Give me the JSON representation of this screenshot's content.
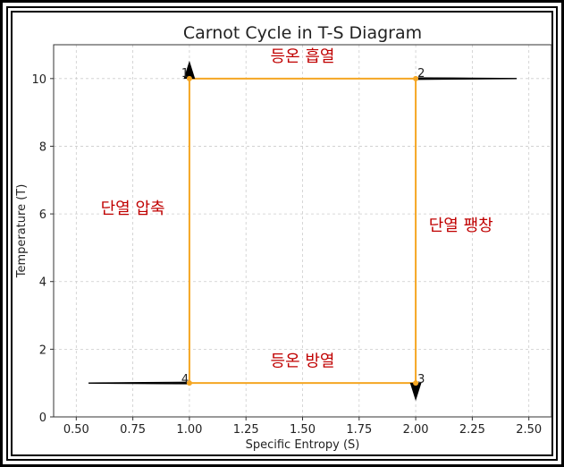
{
  "chart_data": {
    "type": "line",
    "title": "Carnot Cycle in T-S Diagram",
    "xlabel": "Specific Entropy (S)",
    "ylabel": "Temperature (T)",
    "xlim": [
      0.4,
      2.6
    ],
    "ylim": [
      0,
      11
    ],
    "xticks": [
      0.5,
      0.75,
      1.0,
      1.25,
      1.5,
      1.75,
      2.0,
      2.25,
      2.5
    ],
    "xtick_labels": [
      "0.50",
      "0.75",
      "1.00",
      "1.25",
      "1.50",
      "1.75",
      "2.00",
      "2.25",
      "2.50"
    ],
    "yticks": [
      0,
      2,
      4,
      6,
      8,
      10
    ],
    "ytick_labels": [
      "0",
      "2",
      "4",
      "6",
      "8",
      "10"
    ],
    "grid": true,
    "cycle": {
      "color": "#f5a623",
      "points": [
        {
          "label": "1",
          "s": 1.0,
          "t": 10
        },
        {
          "label": "2",
          "s": 2.0,
          "t": 10
        },
        {
          "label": "3",
          "s": 2.0,
          "t": 1
        },
        {
          "label": "4",
          "s": 1.0,
          "t": 1
        }
      ]
    },
    "arrows": [
      {
        "from": [
          2.0,
          10
        ],
        "to": [
          2.5,
          10
        ]
      },
      {
        "from": [
          2.0,
          1
        ],
        "to": [
          2.0,
          0.5
        ]
      },
      {
        "from": [
          1.0,
          1
        ],
        "to": [
          0.5,
          1
        ]
      },
      {
        "from": [
          1.0,
          10
        ],
        "to": [
          1.0,
          10.5
        ]
      }
    ],
    "annotations": [
      {
        "text": "등온 흡열",
        "s": 1.5,
        "t": 10.5
      },
      {
        "text": "단열 팽창",
        "s": 2.2,
        "t": 5.5
      },
      {
        "text": "등온 방열",
        "s": 1.5,
        "t": 1.5
      },
      {
        "text": "단열 압축",
        "s": 0.75,
        "t": 6
      }
    ]
  }
}
